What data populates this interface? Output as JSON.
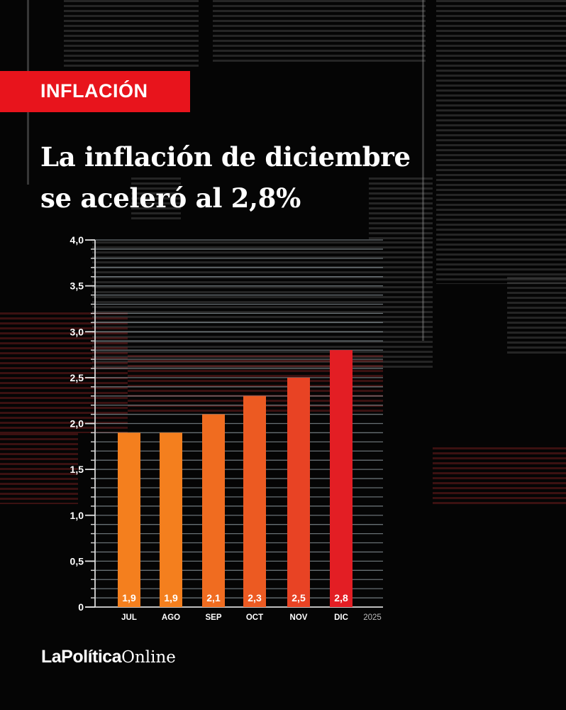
{
  "tag": "INFLACIÓN",
  "title_lines": [
    "La inflación de diciembre",
    "se aceleró al 2,8%"
  ],
  "logo": {
    "bold": "LaPolítica",
    "regular": "Online"
  },
  "colors": {
    "tag": "#e8141c",
    "background": "#050505",
    "grid": "#8a9499"
  },
  "chart_data": {
    "type": "bar",
    "title": "La inflación de diciembre se aceleró al 2,8%",
    "categories": [
      "JUL",
      "AGO",
      "SEP",
      "OCT",
      "NOV",
      "DIC"
    ],
    "values": [
      1.9,
      1.9,
      2.1,
      2.3,
      2.5,
      2.8
    ],
    "value_labels": [
      "1,9",
      "1,9",
      "2,1",
      "2,3",
      "2,5",
      "2,8"
    ],
    "bar_colors": [
      "#f47f1e",
      "#f47f1e",
      "#f06c20",
      "#ec5a22",
      "#e84324",
      "#e31e24"
    ],
    "x_annotation": "2025",
    "ylim": [
      0,
      4.0
    ],
    "yticks": [
      0,
      0.5,
      1.0,
      1.5,
      2.0,
      2.5,
      3.0,
      3.5,
      4.0
    ],
    "ytick_labels": [
      "0",
      "0,5",
      "1,0",
      "1,5",
      "2,0",
      "2,5",
      "3,0",
      "3,5",
      "4,0"
    ],
    "minor_grid_step": 0.1,
    "grid": true,
    "xlabel": "",
    "ylabel": ""
  }
}
